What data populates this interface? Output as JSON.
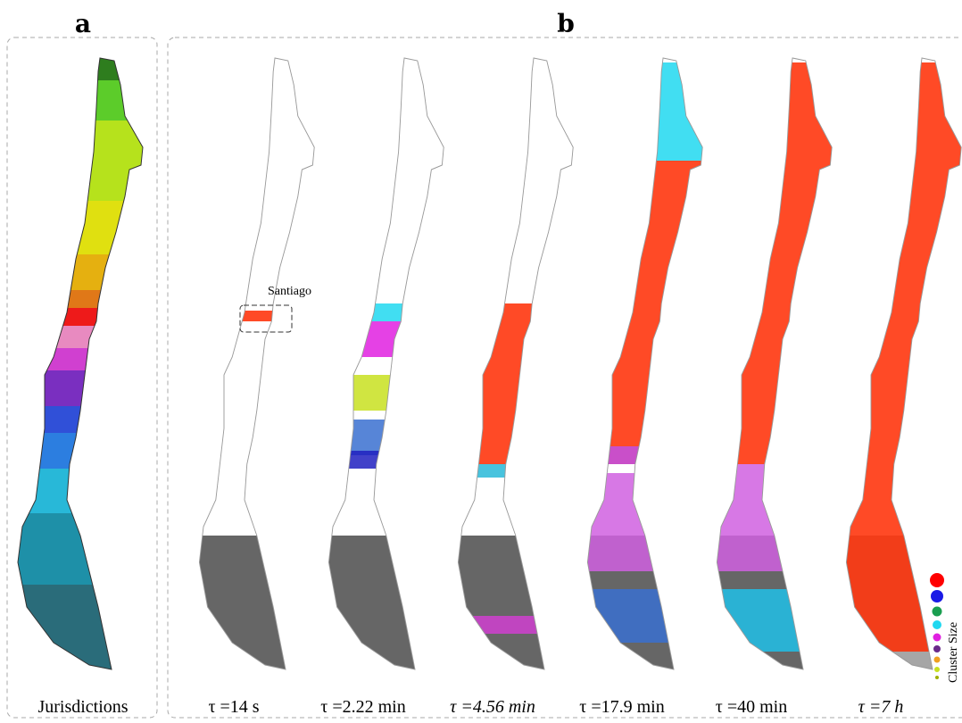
{
  "panel_a": {
    "label": "a",
    "caption": "Jurisdictions"
  },
  "panel_b": {
    "label": "b",
    "annotation": "Santiago",
    "legend_title": "Cluster Size",
    "captions": [
      "τ =14 s",
      "τ =2.22 min",
      "τ =4.56 min",
      "τ =17.9 min",
      "τ =40 min",
      "τ =7 h"
    ]
  }
}
